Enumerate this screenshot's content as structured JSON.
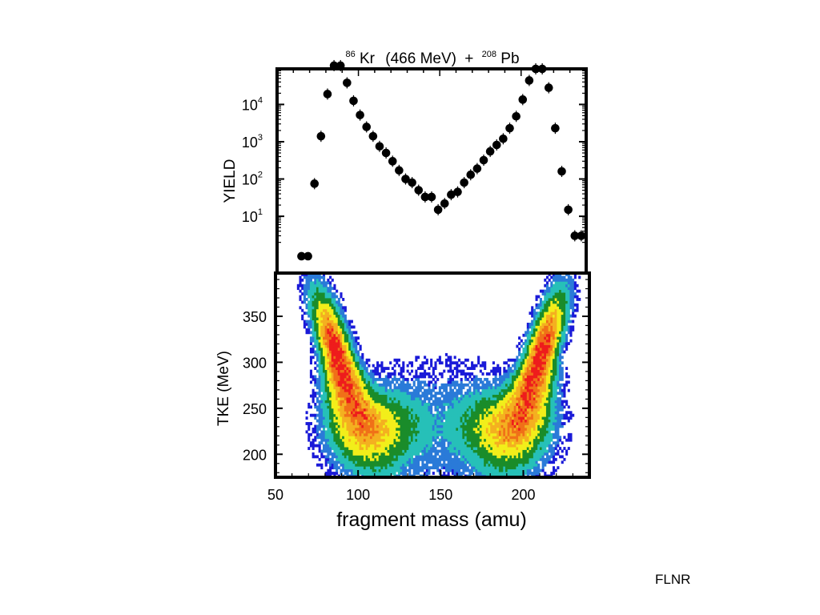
{
  "figure": {
    "title": {
      "projectile_mass": "86",
      "projectile": "Kr",
      "energy": "(466 MeV)",
      "plus": "+",
      "target_mass": "208",
      "target": "Pb"
    },
    "credit": "FLNR"
  },
  "chart_data": [
    {
      "type": "scatter",
      "panel": "top",
      "ylabel": "YIELD",
      "yscale": "log",
      "xlim": [
        50,
        240
      ],
      "ylim": [
        0.3,
        90000
      ],
      "y_ticks": [
        {
          "base": "10",
          "exp": "1",
          "value": 10
        },
        {
          "base": "10",
          "exp": "2",
          "value": 100
        },
        {
          "base": "10",
          "exp": "3",
          "value": 1000
        },
        {
          "base": "10",
          "exp": "4",
          "value": 10000
        }
      ],
      "marker_color": "#000000",
      "series": [
        {
          "x": [
            65,
            69,
            73,
            77,
            81,
            85,
            89,
            93,
            97,
            101,
            105,
            109,
            113,
            117,
            121,
            125,
            129,
            133,
            137,
            141,
            145,
            149,
            153,
            157,
            161,
            165,
            169,
            173,
            177,
            181,
            185,
            189,
            193,
            197,
            201,
            205,
            209,
            213,
            217,
            221,
            225,
            229,
            233,
            237
          ],
          "y": [
            0.85,
            0.85,
            75,
            1400,
            19000,
            110000,
            110000,
            38000,
            12500,
            5200,
            2500,
            1400,
            750,
            500,
            300,
            170,
            100,
            80,
            50,
            33,
            33,
            15,
            22,
            38,
            45,
            80,
            130,
            190,
            320,
            550,
            820,
            1200,
            2300,
            4800,
            13500,
            44000,
            90000,
            90000,
            28000,
            2300,
            160,
            15,
            3,
            3
          ]
        }
      ]
    },
    {
      "type": "heatmap",
      "panel": "bottom",
      "xlabel": "fragment mass (amu)",
      "ylabel": "TKE (MeV)",
      "xlim": [
        50,
        240
      ],
      "ylim": [
        175,
        397
      ],
      "x_ticks": [
        50,
        100,
        150,
        200
      ],
      "y_ticks": [
        200,
        250,
        300,
        350
      ],
      "color_levels": [
        "#1a1ad8",
        "#2a7ad8",
        "#26c0b8",
        "#1a8c2a",
        "#f2ee1a",
        "#f4b020",
        "#f07018",
        "#ee1c1c"
      ],
      "peaks": [
        {
          "mass": 87,
          "tke": 310
        },
        {
          "mass": 211,
          "tke": 310
        }
      ]
    }
  ]
}
